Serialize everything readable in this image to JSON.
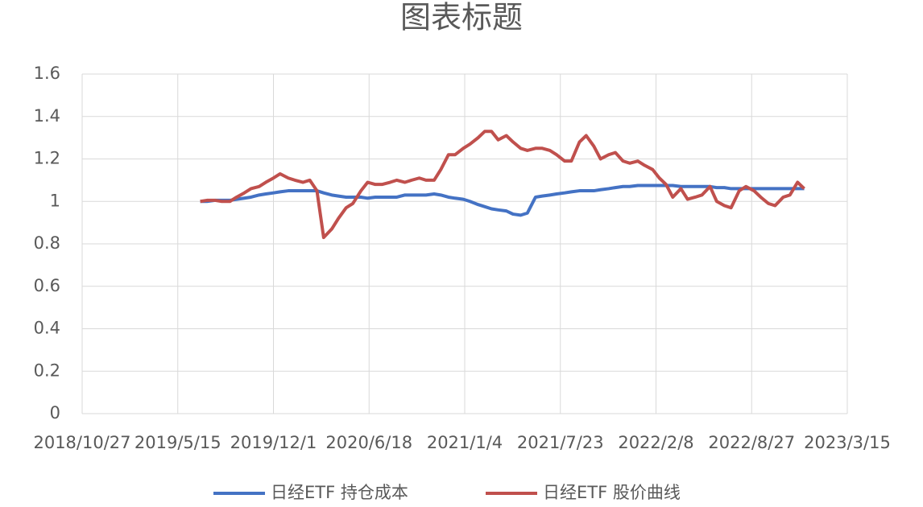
{
  "chart_data": {
    "type": "line",
    "title": "图表标题",
    "x": [
      "2019/7/1",
      "2019/7/15",
      "2019/8/1",
      "2019/8/15",
      "2019/9/1",
      "2019/9/15",
      "2019/10/1",
      "2019/10/15",
      "2019/11/1",
      "2019/11/15",
      "2019/12/1",
      "2019/12/15",
      "2020/1/1",
      "2020/1/15",
      "2020/2/1",
      "2020/2/15",
      "2020/3/1",
      "2020/3/15",
      "2020/4/1",
      "2020/4/15",
      "2020/5/1",
      "2020/5/15",
      "2020/6/1",
      "2020/6/15",
      "2020/7/1",
      "2020/7/15",
      "2020/8/1",
      "2020/8/15",
      "2020/9/1",
      "2020/9/15",
      "2020/10/1",
      "2020/10/15",
      "2020/11/1",
      "2020/11/15",
      "2020/12/1",
      "2020/12/15",
      "2021/1/1",
      "2021/1/15",
      "2021/2/1",
      "2021/2/15",
      "2021/3/1",
      "2021/3/15",
      "2021/4/1",
      "2021/4/15",
      "2021/5/1",
      "2021/5/15",
      "2021/6/1",
      "2021/6/15",
      "2021/7/1",
      "2021/7/15",
      "2021/8/1",
      "2021/8/15",
      "2021/9/1",
      "2021/9/15",
      "2021/10/1",
      "2021/10/15",
      "2021/11/1",
      "2021/11/15",
      "2021/12/1",
      "2021/12/15",
      "2022/1/1",
      "2022/1/15",
      "2022/2/1",
      "2022/2/15",
      "2022/3/1",
      "2022/3/15",
      "2022/4/1",
      "2022/4/15",
      "2022/5/1",
      "2022/5/15",
      "2022/6/1",
      "2022/6/15",
      "2022/7/1",
      "2022/7/15",
      "2022/8/1",
      "2022/8/15",
      "2022/9/1",
      "2022/9/15",
      "2022/10/1",
      "2022/10/15",
      "2022/11/1",
      "2022/11/15",
      "2022/12/1",
      "2022/12/15"
    ],
    "series": [
      {
        "name": "日经ETF 持仓成本",
        "color": "#4472c4",
        "values": [
          1.0,
          1.0,
          1.005,
          1.005,
          1.005,
          1.01,
          1.015,
          1.02,
          1.03,
          1.035,
          1.04,
          1.045,
          1.05,
          1.05,
          1.05,
          1.05,
          1.05,
          1.04,
          1.03,
          1.025,
          1.02,
          1.02,
          1.02,
          1.015,
          1.02,
          1.02,
          1.02,
          1.02,
          1.03,
          1.03,
          1.03,
          1.03,
          1.035,
          1.03,
          1.02,
          1.015,
          1.01,
          1.0,
          0.985,
          0.975,
          0.965,
          0.96,
          0.955,
          0.94,
          0.935,
          0.945,
          1.02,
          1.025,
          1.03,
          1.035,
          1.04,
          1.045,
          1.05,
          1.05,
          1.05,
          1.055,
          1.06,
          1.065,
          1.07,
          1.07,
          1.075,
          1.075,
          1.075,
          1.075,
          1.075,
          1.075,
          1.07,
          1.07,
          1.07,
          1.07,
          1.07,
          1.065,
          1.065,
          1.06,
          1.06,
          1.06,
          1.06,
          1.06,
          1.06,
          1.06,
          1.06,
          1.06,
          1.06,
          1.06
        ]
      },
      {
        "name": "日经ETF 股价曲线",
        "color": "#c0504d",
        "values": [
          1.0,
          1.005,
          1.005,
          1.0,
          1.0,
          1.02,
          1.04,
          1.06,
          1.07,
          1.09,
          1.11,
          1.13,
          1.11,
          1.1,
          1.09,
          1.1,
          1.05,
          0.83,
          0.87,
          0.92,
          0.97,
          0.99,
          1.05,
          1.09,
          1.08,
          1.08,
          1.09,
          1.1,
          1.09,
          1.1,
          1.11,
          1.1,
          1.1,
          1.15,
          1.22,
          1.22,
          1.25,
          1.27,
          1.3,
          1.33,
          1.33,
          1.29,
          1.31,
          1.28,
          1.25,
          1.24,
          1.25,
          1.25,
          1.24,
          1.22,
          1.19,
          1.19,
          1.28,
          1.31,
          1.26,
          1.2,
          1.22,
          1.23,
          1.19,
          1.18,
          1.19,
          1.17,
          1.15,
          1.11,
          1.08,
          1.02,
          1.06,
          1.01,
          1.02,
          1.03,
          1.07,
          1.0,
          0.98,
          0.97,
          1.05,
          1.07,
          1.05,
          1.02,
          0.99,
          0.98,
          1.02,
          1.03,
          1.09,
          1.06
        ]
      }
    ],
    "xlim": [
      "2018/10/27",
      "2023/3/15"
    ],
    "xticks": [
      "2018/10/27",
      "2019/5/15",
      "2019/12/1",
      "2020/6/18",
      "2021/1/4",
      "2021/7/23",
      "2022/2/8",
      "2022/8/27",
      "2023/3/15"
    ],
    "ylim": [
      0,
      1.6
    ],
    "yticks": [
      0,
      0.2,
      0.4,
      0.6,
      0.8,
      1,
      1.2,
      1.4,
      1.6
    ],
    "grid": true,
    "legend": "bottom"
  }
}
